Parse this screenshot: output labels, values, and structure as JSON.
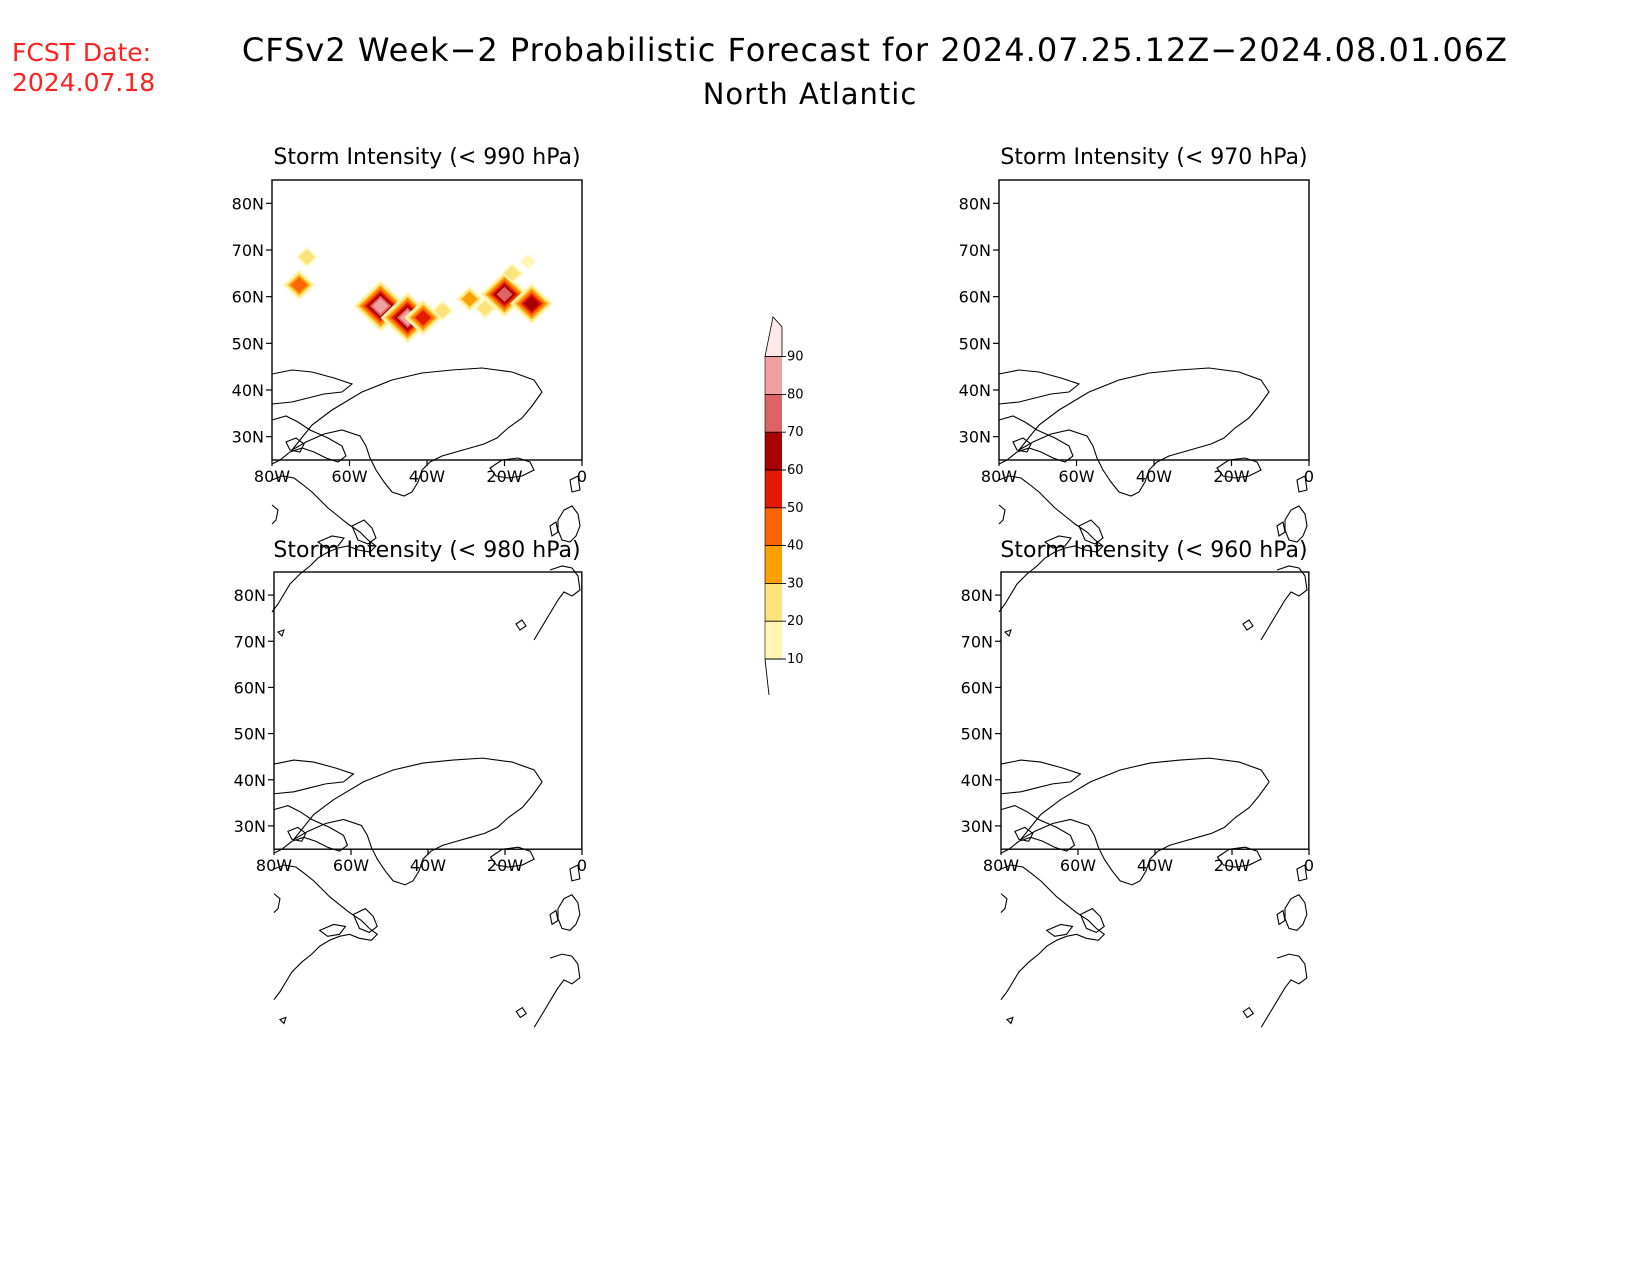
{
  "forecast_date": {
    "label": "FCST Date:",
    "value": "2024.07.18"
  },
  "title": "CFSv2 Week−2 Probabilistic Forecast for 2024.07.25.12Z−2024.08.01.06Z",
  "subtitle": "North Atlantic",
  "panels": [
    {
      "title": "Storm Intensity (< 990 hPa)"
    },
    {
      "title": "Storm Intensity (< 970 hPa)"
    },
    {
      "title": "Storm Intensity (< 980 hPa)"
    },
    {
      "title": "Storm Intensity (< 960 hPa)"
    }
  ],
  "axes": {
    "lon_ticks": [
      "80W",
      "60W",
      "40W",
      "20W",
      "0"
    ],
    "lat_ticks": [
      "30N",
      "40N",
      "50N",
      "60N",
      "70N",
      "80N"
    ],
    "lon_values": [
      -80,
      -60,
      -40,
      -20,
      0
    ],
    "lat_values": [
      30,
      40,
      50,
      60,
      70,
      80
    ],
    "lon_range": [
      -80,
      0
    ],
    "lat_range": [
      25,
      85
    ]
  },
  "colorbar": {
    "levels": [
      10,
      20,
      30,
      40,
      50,
      60,
      70,
      80,
      90
    ],
    "labels": [
      "10",
      "20",
      "30",
      "40",
      "50",
      "60",
      "70",
      "80",
      "90"
    ],
    "colors": [
      "#fff6b3",
      "#fbe27a",
      "#ffa000",
      "#ff6400",
      "#e31a00",
      "#a80000",
      "#dc6464",
      "#f0a0a0",
      "#fde8ea"
    ]
  },
  "chart_data": {
    "type": "heatmap",
    "units": "probability (%)",
    "panels": [
      {
        "title": "Storm Intensity (< 990 hPa)",
        "lon_range": [
          -80,
          0
        ],
        "lat_range": [
          25,
          85
        ],
        "probability_blobs": [
          {
            "lon": -52,
            "lat": 58,
            "max": 80
          },
          {
            "lon": -45,
            "lat": 55.5,
            "max": 80
          },
          {
            "lon": -41,
            "lat": 55.5,
            "max": 50
          },
          {
            "lon": -20,
            "lat": 60.5,
            "max": 70
          },
          {
            "lon": -13,
            "lat": 58.5,
            "max": 60
          },
          {
            "lon": -73,
            "lat": 62.5,
            "max": 40
          },
          {
            "lon": -71,
            "lat": 68.5,
            "max": 20
          },
          {
            "lon": -36,
            "lat": 57,
            "max": 20
          },
          {
            "lon": -29,
            "lat": 59.5,
            "max": 30
          },
          {
            "lon": -25,
            "lat": 57.5,
            "max": 20
          },
          {
            "lon": -18,
            "lat": 65,
            "max": 20
          },
          {
            "lon": -14,
            "lat": 67.5,
            "max": 10
          }
        ]
      },
      {
        "title": "Storm Intensity (< 970 hPa)",
        "lon_range": [
          -80,
          0
        ],
        "lat_range": [
          25,
          85
        ],
        "probability_blobs": []
      },
      {
        "title": "Storm Intensity (< 980 hPa)",
        "lon_range": [
          -80,
          0
        ],
        "lat_range": [
          25,
          85
        ],
        "probability_blobs": []
      },
      {
        "title": "Storm Intensity (< 960 hPa)",
        "lon_range": [
          -80,
          0
        ],
        "lat_range": [
          25,
          85
        ],
        "probability_blobs": []
      }
    ]
  }
}
